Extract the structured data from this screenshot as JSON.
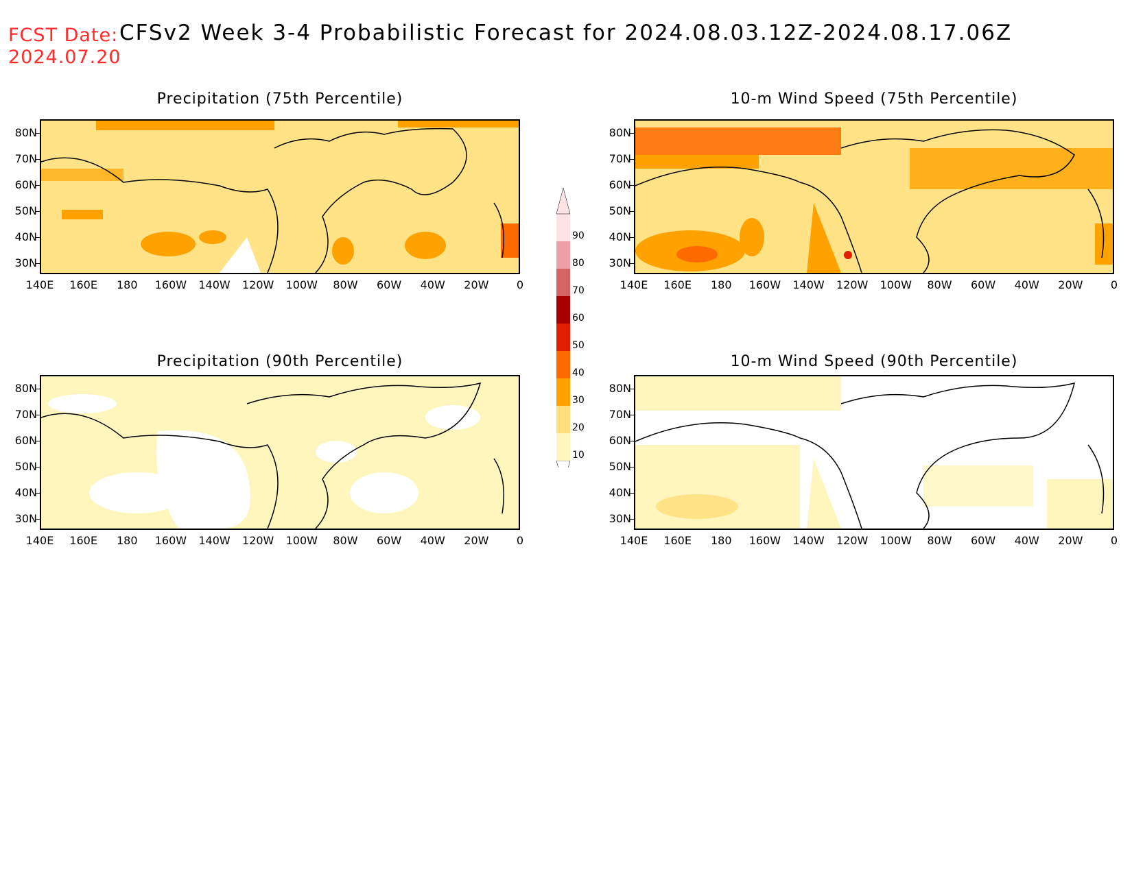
{
  "header": {
    "fcst_label": "FCST Date:",
    "fcst_date": "2024.07.20",
    "title": "CFSv2 Week 3-4 Probabilistic Forecast for 2024.08.03.12Z-2024.08.17.06Z"
  },
  "axes": {
    "lat_labels": [
      "80N",
      "70N",
      "60N",
      "50N",
      "40N",
      "30N"
    ],
    "lon_labels": [
      "140E",
      "160E",
      "180",
      "160W",
      "140W",
      "120W",
      "100W",
      "80W",
      "60W",
      "40W",
      "20W",
      "0"
    ]
  },
  "panels": [
    {
      "id": "precip75",
      "title": "Precipitation (75th Percentile)"
    },
    {
      "id": "wind75",
      "title": "10-m Wind Speed (75th Percentile)"
    },
    {
      "id": "precip90",
      "title": "Precipitation (90th Percentile)"
    },
    {
      "id": "wind90",
      "title": "10-m Wind Speed (90th Percentile)"
    }
  ],
  "colorbar": {
    "levels": [
      "10",
      "20",
      "30",
      "40",
      "50",
      "60",
      "70",
      "80",
      "90"
    ],
    "colors": [
      "#fff6be",
      "#ffe07a",
      "#ffa200",
      "#ff6a00",
      "#e01e00",
      "#a80000",
      "#d26464",
      "#eca0a8",
      "#fde2e6"
    ]
  }
}
